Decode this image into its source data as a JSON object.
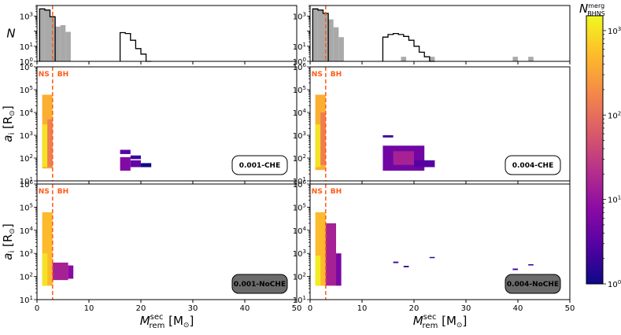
{
  "chart_data": {
    "type": "multi-panel histogram + 2D histogram (heatmap)",
    "layout": {
      "rows": 3,
      "cols": 2
    },
    "ns_bh_boundary": 3.0,
    "ns_label": "NS",
    "bh_label": "BH",
    "shared_xlabel": "M_rem^sec [M_sun]",
    "xlabel_main": "M",
    "xlabel_sup": "sec",
    "xlabel_sub": "rem",
    "xlabel_unit": " [M",
    "xlabel_close": "]",
    "xlim": [
      0,
      50
    ],
    "xticks": [
      0,
      10,
      20,
      30,
      40,
      50
    ],
    "xtick_labels": [
      "0",
      "10",
      "20",
      "30",
      "40",
      "50"
    ],
    "top_ylabel": "N",
    "top_ylim_log": [
      1,
      5000
    ],
    "top_yticks": [
      {
        "v": 1,
        "base": "10",
        "exp": "0"
      },
      {
        "v": 10,
        "base": "10",
        "exp": "1"
      },
      {
        "v": 1000,
        "base": "10",
        "exp": "3"
      }
    ],
    "heat_ylabel_main": "a",
    "heat_ylabel_sub": "i",
    "heat_ylabel_unit": " [R",
    "heat_ylabel_close": "]",
    "heat_ylim_log": [
      10,
      1000000
    ],
    "heat_yticks": [
      {
        "v": 10,
        "base": "10",
        "exp": "1"
      },
      {
        "v": 100,
        "base": "10",
        "exp": "2"
      },
      {
        "v": 1000,
        "base": "10",
        "exp": "3"
      },
      {
        "v": 10000,
        "base": "10",
        "exp": "4"
      },
      {
        "v": 100000,
        "base": "10",
        "exp": "5"
      },
      {
        "v": 1000000,
        "base": "10",
        "exp": "6"
      }
    ],
    "colorbar": {
      "label_main": "N",
      "label_sup": "merg",
      "label_sub": "BHNS",
      "scale": "log",
      "range": [
        1,
        1500
      ],
      "ticks": [
        {
          "v": 1,
          "base": "10",
          "exp": "0"
        },
        {
          "v": 10,
          "base": "10",
          "exp": "1"
        },
        {
          "v": 100,
          "base": "10",
          "exp": "2"
        },
        {
          "v": 1000,
          "base": "10",
          "exp": "3"
        }
      ],
      "colormap": [
        "#0d0887",
        "#5302a3",
        "#8b0aa5",
        "#b83289",
        "#db5c68",
        "#f48849",
        "#febd2a",
        "#f0f921"
      ]
    },
    "panels": [
      {
        "model": "0.001-CHE",
        "hist_gray": [
          {
            "x0": 0.5,
            "x1": 1.5,
            "n": 3000
          },
          {
            "x0": 1.5,
            "x1": 2.5,
            "n": 2500
          },
          {
            "x0": 2.5,
            "x1": 3.5,
            "n": 900
          },
          {
            "x0": 3.5,
            "x1": 4.5,
            "n": 200
          },
          {
            "x0": 4.5,
            "x1": 5.5,
            "n": 250
          },
          {
            "x0": 5.5,
            "x1": 6.5,
            "n": 90
          }
        ],
        "hist_black_step": [
          {
            "x0": 0.5,
            "x1": 1.5,
            "n": 3000
          },
          {
            "x0": 1.5,
            "x1": 2.5,
            "n": 2500
          },
          {
            "x0": 2.5,
            "x1": 3.5,
            "n": 900
          },
          {
            "x0": 16,
            "x1": 17,
            "n": 80
          },
          {
            "x0": 17,
            "x1": 18,
            "n": 70
          },
          {
            "x0": 18,
            "x1": 19,
            "n": 25
          },
          {
            "x0": 19,
            "x1": 20,
            "n": 7
          },
          {
            "x0": 20,
            "x1": 21,
            "n": 3
          },
          {
            "x0": 21,
            "x1": 22,
            "n": 1
          }
        ],
        "heat": {
          "cells": [
            {
              "x0": 1.0,
              "x1": 3.0,
              "y0": 35,
              "y1": 60000,
              "n": 400
            },
            {
              "x0": 1.0,
              "x1": 2.0,
              "y0": 40,
              "y1": 3000,
              "n": 1000
            },
            {
              "x0": 2.0,
              "x1": 3.0,
              "y0": 40,
              "y1": 5000,
              "n": 150
            },
            {
              "x0": 16.0,
              "x1": 18.0,
              "y0": 28,
              "y1": 110,
              "n": 7
            },
            {
              "x0": 16.0,
              "x1": 18.0,
              "y0": 150,
              "y1": 230,
              "n": 3
            },
            {
              "x0": 18.0,
              "x1": 20.0,
              "y0": 40,
              "y1": 80,
              "n": 4
            },
            {
              "x0": 18.0,
              "x1": 20.0,
              "y0": 90,
              "y1": 130,
              "n": 2
            },
            {
              "x0": 20.0,
              "x1": 22.0,
              "y0": 40,
              "y1": 60,
              "n": 1
            }
          ]
        }
      },
      {
        "model": "0.004-CHE",
        "hist_gray": [
          {
            "x0": 0.5,
            "x1": 1.5,
            "n": 3000
          },
          {
            "x0": 1.5,
            "x1": 2.5,
            "n": 2500
          },
          {
            "x0": 2.5,
            "x1": 3.5,
            "n": 1500
          },
          {
            "x0": 3.5,
            "x1": 4.5,
            "n": 600
          },
          {
            "x0": 4.5,
            "x1": 5.5,
            "n": 180
          },
          {
            "x0": 5.5,
            "x1": 6.5,
            "n": 40
          },
          {
            "x0": 17.5,
            "x1": 18.5,
            "n": 2
          },
          {
            "x0": 23,
            "x1": 24,
            "n": 2
          },
          {
            "x0": 39,
            "x1": 40,
            "n": 2
          },
          {
            "x0": 42,
            "x1": 43,
            "n": 2
          }
        ],
        "hist_black_step": [
          {
            "x0": 0.5,
            "x1": 1.5,
            "n": 3000
          },
          {
            "x0": 1.5,
            "x1": 2.5,
            "n": 2500
          },
          {
            "x0": 2.5,
            "x1": 3.5,
            "n": 1500
          },
          {
            "x0": 14,
            "x1": 15,
            "n": 40
          },
          {
            "x0": 15,
            "x1": 16,
            "n": 60
          },
          {
            "x0": 16,
            "x1": 17,
            "n": 70
          },
          {
            "x0": 17,
            "x1": 18,
            "n": 60
          },
          {
            "x0": 18,
            "x1": 19,
            "n": 45
          },
          {
            "x0": 19,
            "x1": 20,
            "n": 25
          },
          {
            "x0": 20,
            "x1": 21,
            "n": 10
          },
          {
            "x0": 21,
            "x1": 22,
            "n": 4
          },
          {
            "x0": 22,
            "x1": 23,
            "n": 2
          },
          {
            "x0": 23,
            "x1": 24,
            "n": 1
          }
        ],
        "heat": {
          "cells": [
            {
              "x0": 1.0,
              "x1": 3.0,
              "y0": 30,
              "y1": 60000,
              "n": 400
            },
            {
              "x0": 1.0,
              "x1": 2.0,
              "y0": 40,
              "y1": 3000,
              "n": 1000
            },
            {
              "x0": 2.0,
              "x1": 3.0,
              "y0": 50,
              "y1": 10000,
              "n": 150
            },
            {
              "x0": 14.0,
              "x1": 16.0,
              "y0": 800,
              "y1": 1000,
              "n": 2
            },
            {
              "x0": 14.0,
              "x1": 22.0,
              "y0": 28,
              "y1": 350,
              "n": 5
            },
            {
              "x0": 16.0,
              "x1": 20.0,
              "y0": 50,
              "y1": 200,
              "n": 15
            },
            {
              "x0": 20.0,
              "x1": 24.0,
              "y0": 40,
              "y1": 80,
              "n": 3
            }
          ]
        }
      },
      {
        "model": "0.001-NoCHE",
        "heat": {
          "cells": [
            {
              "x0": 1.0,
              "x1": 3.0,
              "y0": 40,
              "y1": 60000,
              "n": 500
            },
            {
              "x0": 1.0,
              "x1": 2.0,
              "y0": 40,
              "y1": 1000,
              "n": 1000
            },
            {
              "x0": 3.0,
              "x1": 6.0,
              "y0": 70,
              "y1": 400,
              "n": 15
            },
            {
              "x0": 6.0,
              "x1": 7.0,
              "y0": 80,
              "y1": 300,
              "n": 8
            }
          ]
        }
      },
      {
        "model": "0.004-NoCHE",
        "heat": {
          "cells": [
            {
              "x0": 1.0,
              "x1": 3.0,
              "y0": 40,
              "y1": 60000,
              "n": 500
            },
            {
              "x0": 1.0,
              "x1": 2.0,
              "y0": 40,
              "y1": 800,
              "n": 1200
            },
            {
              "x0": 3.0,
              "x1": 5.0,
              "y0": 40,
              "y1": 20000,
              "n": 15
            },
            {
              "x0": 5.0,
              "x1": 6.0,
              "y0": 40,
              "y1": 1000,
              "n": 6
            },
            {
              "x0": 16.0,
              "x1": 17.0,
              "y0": 380,
              "y1": 440,
              "n": 2
            },
            {
              "x0": 18.0,
              "x1": 19.0,
              "y0": 250,
              "y1": 290,
              "n": 2
            },
            {
              "x0": 23.0,
              "x1": 24.0,
              "y0": 630,
              "y1": 700,
              "n": 2
            },
            {
              "x0": 39.0,
              "x1": 40.0,
              "y0": 190,
              "y1": 220,
              "n": 2
            },
            {
              "x0": 42.0,
              "x1": 43.0,
              "y0": 300,
              "y1": 340,
              "n": 2
            }
          ]
        }
      }
    ]
  }
}
